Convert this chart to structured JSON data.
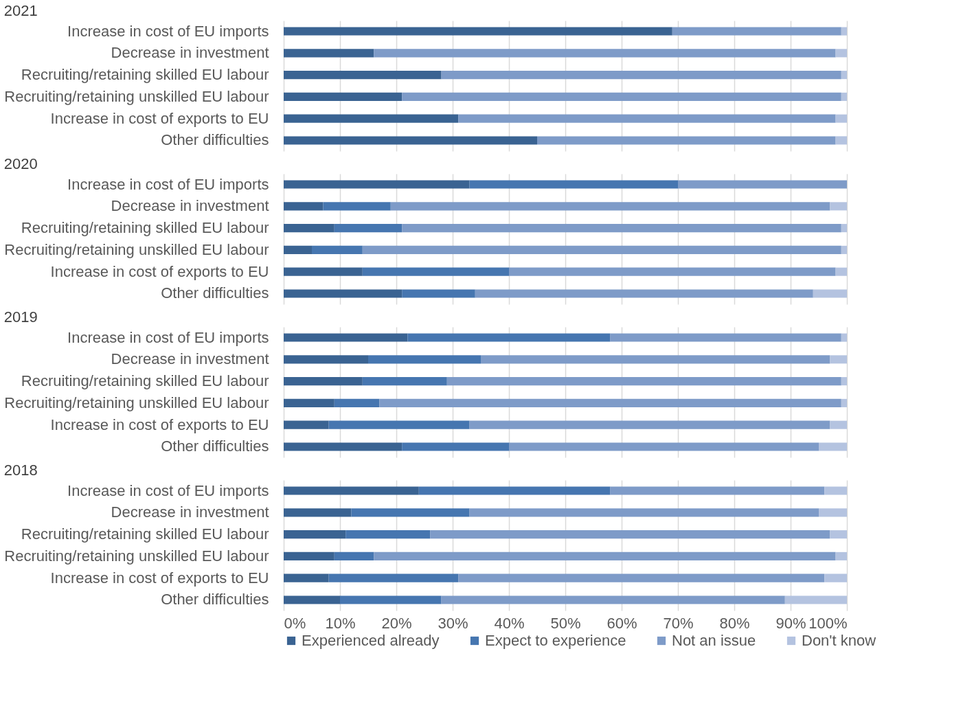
{
  "chart_data": [
    {
      "type": "bar",
      "orientation": "horizontal",
      "stacked": true,
      "title": "2021",
      "categories": [
        "Increase in cost of EU imports",
        "Decrease in investment",
        "Recruiting/retaining skilled EU labour",
        "Recruiting/retaining unskilled EU labour",
        "Increase in cost of exports to EU",
        "Other difficulties"
      ],
      "series": [
        {
          "color": "#3a6392",
          "values": [
            69,
            16,
            28,
            21,
            31,
            45
          ]
        },
        {
          "color": "#4676b0",
          "values": [
            0,
            0,
            0,
            0,
            0,
            0
          ]
        },
        {
          "color": "#7e9bc8",
          "values": [
            30,
            82,
            71,
            78,
            67,
            53
          ]
        },
        {
          "color": "#b4c3e0",
          "values": [
            1,
            2,
            1,
            1,
            2,
            2
          ]
        }
      ],
      "xlim": [
        0,
        100
      ],
      "xticks": [
        0,
        10,
        20,
        30,
        40,
        50,
        60,
        70,
        80,
        90,
        100
      ],
      "grid": "x",
      "tick_labels": "y"
    },
    {
      "type": "bar",
      "orientation": "horizontal",
      "stacked": true,
      "title": "2020",
      "categories": [
        "Increase in cost of EU imports",
        "Decrease in investment",
        "Recruiting/retaining skilled EU labour",
        "Recruiting/retaining unskilled EU labour",
        "Increase in cost of exports to EU",
        "Other difficulties"
      ],
      "series": [
        {
          "color": "#3a6392",
          "values": [
            33,
            7,
            9,
            5,
            14,
            21
          ]
        },
        {
          "color": "#4676b0",
          "values": [
            37,
            12,
            12,
            9,
            26,
            13
          ]
        },
        {
          "color": "#7e9bc8",
          "values": [
            30,
            78,
            78,
            85,
            58,
            60
          ]
        },
        {
          "color": "#b4c3e0",
          "values": [
            0,
            3,
            1,
            1,
            2,
            6
          ]
        }
      ],
      "xlim": [
        0,
        100
      ],
      "xticks": [
        0,
        10,
        20,
        30,
        40,
        50,
        60,
        70,
        80,
        90,
        100
      ],
      "grid": "x",
      "tick_labels": "y"
    },
    {
      "type": "bar",
      "orientation": "horizontal",
      "stacked": true,
      "title": "2019",
      "categories": [
        "Increase in cost of EU imports",
        "Decrease in investment",
        "Recruiting/retaining skilled EU labour",
        "Recruiting/retaining unskilled EU labour",
        "Increase in cost of exports to EU",
        "Other difficulties"
      ],
      "series": [
        {
          "color": "#3a6392",
          "values": [
            22,
            15,
            14,
            9,
            8,
            21
          ]
        },
        {
          "color": "#4676b0",
          "values": [
            36,
            20,
            15,
            8,
            25,
            19
          ]
        },
        {
          "color": "#7e9bc8",
          "values": [
            41,
            62,
            70,
            82,
            64,
            55
          ]
        },
        {
          "color": "#b4c3e0",
          "values": [
            1,
            3,
            1,
            1,
            3,
            5
          ]
        }
      ],
      "xlim": [
        0,
        100
      ],
      "xticks": [
        0,
        10,
        20,
        30,
        40,
        50,
        60,
        70,
        80,
        90,
        100
      ],
      "grid": "x",
      "tick_labels": "y"
    },
    {
      "type": "bar",
      "orientation": "horizontal",
      "stacked": true,
      "title": "2018",
      "categories": [
        "Increase in cost of EU imports",
        "Decrease in investment",
        "Recruiting/retaining skilled EU labour",
        "Recruiting/retaining unskilled EU labour",
        "Increase in cost of exports to EU",
        "Other difficulties"
      ],
      "series": [
        {
          "name": "Experienced already",
          "color": "#3a6392",
          "values": [
            24,
            12,
            11,
            9,
            8,
            10
          ]
        },
        {
          "name": "Expect to experience",
          "color": "#4676b0",
          "values": [
            34,
            21,
            15,
            7,
            23,
            18
          ]
        },
        {
          "name": "Not an issue",
          "color": "#7e9bc8",
          "values": [
            38,
            62,
            71,
            82,
            65,
            61
          ]
        },
        {
          "name": "Don't know",
          "color": "#b4c3e0",
          "values": [
            4,
            5,
            3,
            2,
            4,
            11
          ]
        }
      ],
      "xlim": [
        0,
        100
      ],
      "xticks": [
        {
          "value": 0,
          "label": "0%"
        },
        {
          "value": 10,
          "label": "10%"
        },
        {
          "value": 20,
          "label": "20%"
        },
        {
          "value": 30,
          "label": "30%"
        },
        {
          "value": 40,
          "label": "40%"
        },
        {
          "value": 50,
          "label": "50%"
        },
        {
          "value": 60,
          "label": "60%"
        },
        {
          "value": 70,
          "label": "70%"
        },
        {
          "value": 80,
          "label": "80%"
        },
        {
          "value": 90,
          "label": "90%"
        },
        {
          "value": 100,
          "label": "100%"
        }
      ],
      "grid": "x",
      "legend": "bottom"
    }
  ]
}
